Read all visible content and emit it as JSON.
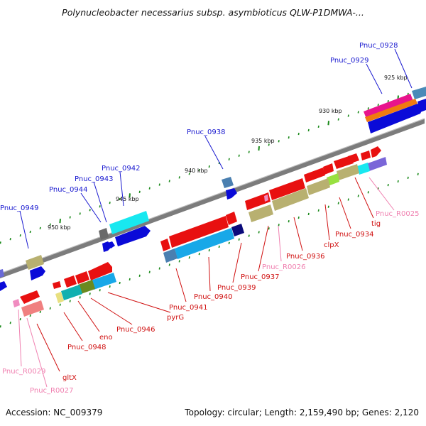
{
  "title": "Polynucleobacter necessarius subsp. asymbioticus QLW-P1DMWA-...",
  "footer": {
    "accession": "Accession: NC_009379",
    "summary": "Topology: circular; Length: 2,159,490 bp; Genes: 2,120"
  },
  "scale_labels": {
    "kbp925": "925 kbp",
    "kbp930": "930 kbp",
    "kbp935": "935 kbp",
    "kbp940": "940 kbp",
    "kbp945": "945 kbp",
    "kbp950": "950 kbp"
  },
  "gene_labels": {
    "pnuc0928": "Pnuc_0928",
    "pnuc0929": "Pnuc_0929",
    "pnuc0938": "Pnuc_0938",
    "pnuc0942": "Pnuc_0942",
    "pnuc0943": "Pnuc_0943",
    "pnuc0944": "Pnuc_0944",
    "pnuc0949": "Pnuc_0949",
    "pnucR0025": "Pnuc_R0025",
    "tig": "tig",
    "pnuc0934": "Pnuc_0934",
    "clpX": "clpX",
    "pnuc0936": "Pnuc_0936",
    "pnucR0026": "Pnuc_R0026",
    "pnuc0937": "Pnuc_0937",
    "pnuc0939": "Pnuc_0939",
    "pnuc0940": "Pnuc_0940",
    "pnuc0941": "Pnuc_0941",
    "pyrG": "pyrG",
    "pnuc0946": "Pnuc_0946",
    "eno": "eno",
    "pnuc0948": "Pnuc_0948",
    "gltX": "gltX",
    "pnucR0029": "Pnuc_R0029",
    "pnucR0027": "Pnuc_R0027"
  },
  "colors": {
    "forward_label": "#1a1ad0",
    "reverse_label": "#d01010",
    "rna_label": "#f080b0",
    "backbone": "#808080",
    "tick": "#1a8a1a"
  }
}
